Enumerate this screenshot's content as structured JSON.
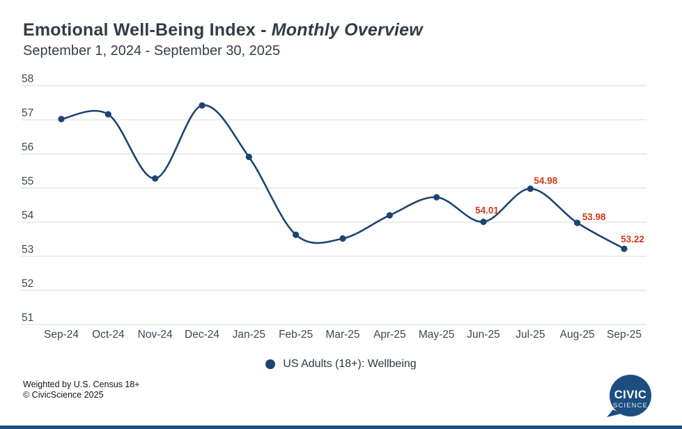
{
  "header": {
    "title_prefix": "Emotional Well-Being Index - ",
    "title_emphasis": "Monthly Overview",
    "subtitle": "September 1, 2024 - September 30, 2025"
  },
  "chart_data": {
    "type": "line",
    "title": "Emotional Well-Being Index - Monthly Overview",
    "subtitle": "September 1, 2024 - September 30, 2025",
    "categories": [
      "Sep-24",
      "Oct-24",
      "Nov-24",
      "Dec-24",
      "Jan-25",
      "Feb-25",
      "Mar-25",
      "Apr-25",
      "May-25",
      "Jun-25",
      "Jul-25",
      "Aug-25",
      "Sep-25"
    ],
    "series": [
      {
        "name": "US Adults (18+): Wellbeing",
        "values": [
          57.02,
          57.16,
          55.28,
          57.42,
          55.91,
          53.63,
          53.52,
          54.2,
          54.73,
          54.01,
          54.98,
          53.98,
          53.22
        ],
        "color": "#1d4370"
      }
    ],
    "point_labels": [
      null,
      null,
      null,
      null,
      null,
      null,
      null,
      null,
      null,
      "54.01",
      "54.98",
      "53.98",
      "53.22"
    ],
    "point_label_color": "#ce3a18",
    "ylim": [
      51,
      58
    ],
    "yticks": [
      58,
      57,
      56,
      55,
      54,
      53,
      52,
      51
    ],
    "grid": true,
    "gridline_color": "#d9d9d9",
    "axis_label_color": "#3e4751",
    "legend_position": "bottom"
  },
  "legend": {
    "label": "US Adults (18+): Wellbeing",
    "marker_color": "#1d4370"
  },
  "footer": {
    "line1": "Weighted by U.S. Census 18+",
    "line2": "© CivicScience 2025"
  },
  "logo": {
    "line1": "CIVIC",
    "line2": "SCIENCE",
    "color": "#1d4e80"
  }
}
